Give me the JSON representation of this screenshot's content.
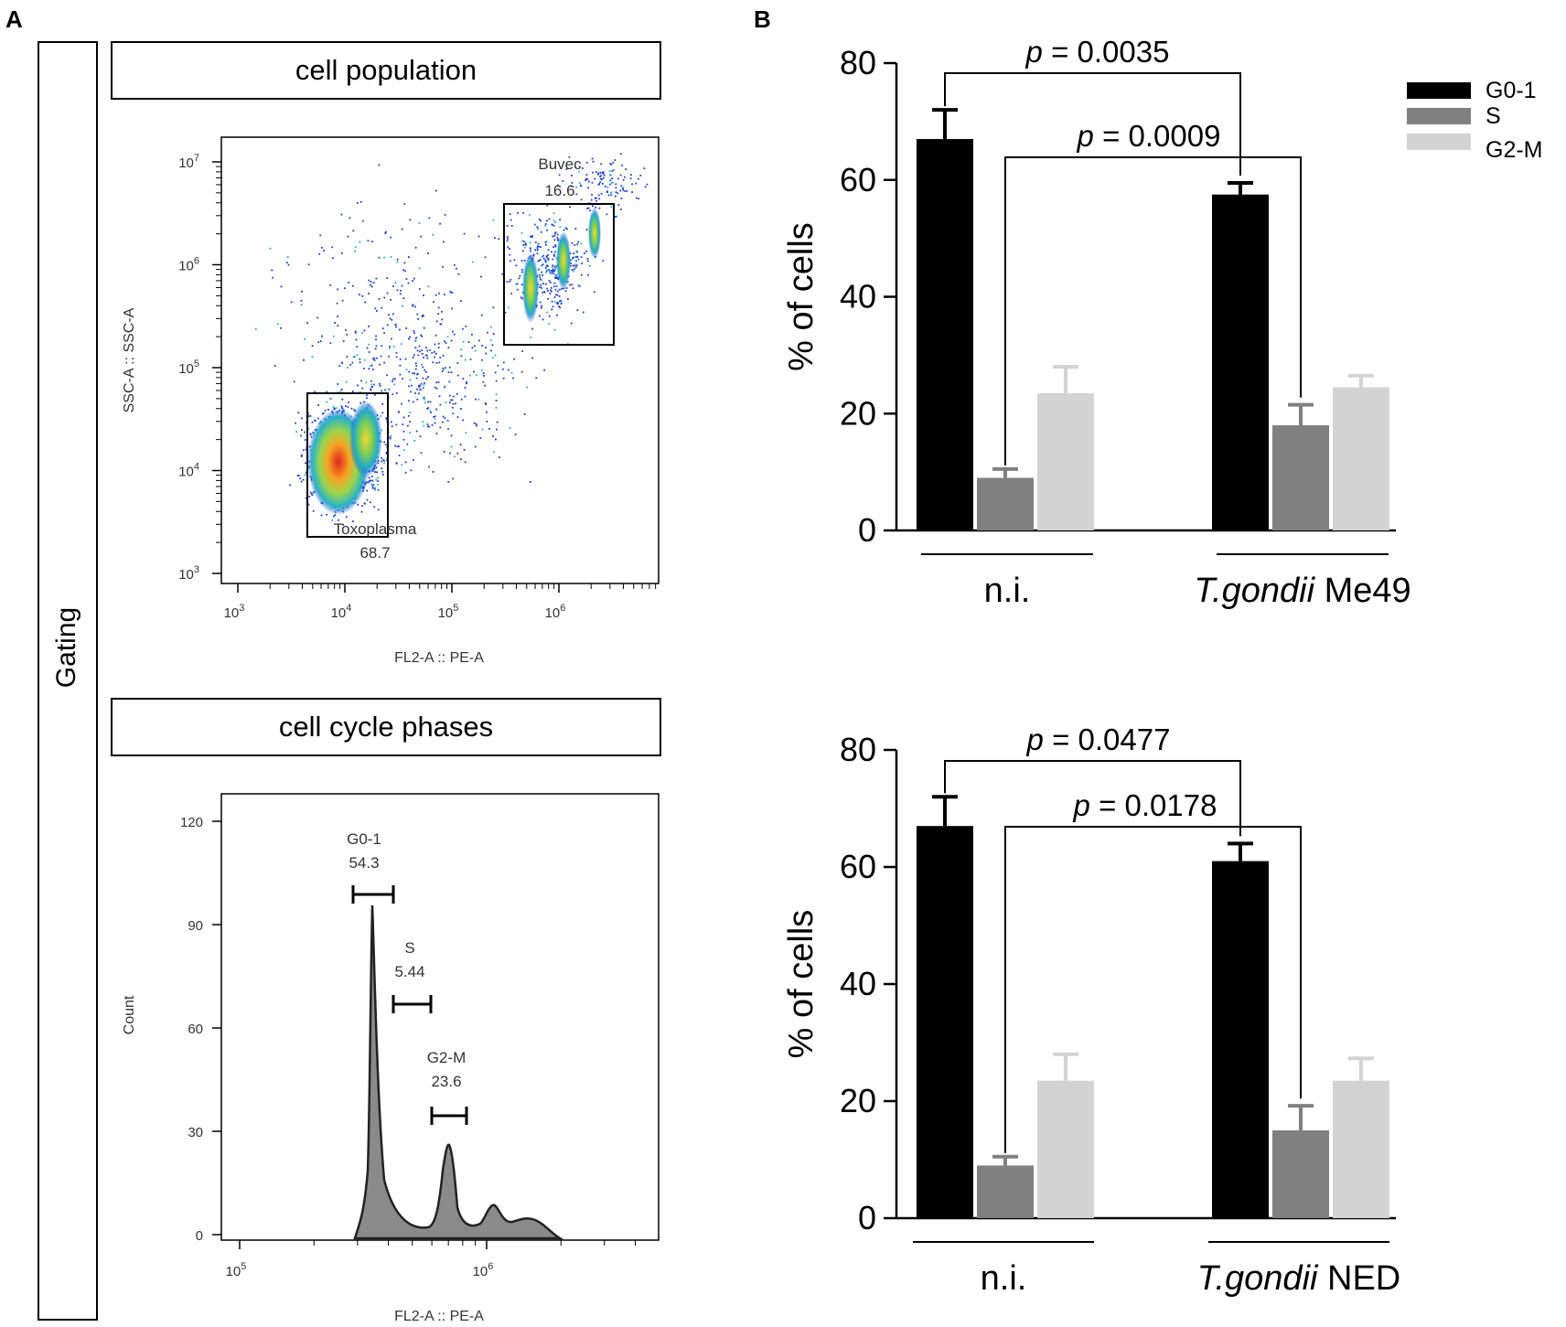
{
  "panel_a": {
    "letter": "A",
    "side_label": "Gating",
    "box1_title": "cell population",
    "box2_title": "cell cycle phases",
    "scatter": {
      "ylabel": "SSC-A :: SSC-A",
      "xlabel": "FL2-A :: PE-A",
      "x_ticks": [
        {
          "base": "10",
          "exp": "3"
        },
        {
          "base": "10",
          "exp": "4"
        },
        {
          "base": "10",
          "exp": "5"
        },
        {
          "base": "10",
          "exp": "6"
        }
      ],
      "y_ticks": [
        {
          "base": "10",
          "exp": "3"
        },
        {
          "base": "10",
          "exp": "4"
        },
        {
          "base": "10",
          "exp": "5"
        },
        {
          "base": "10",
          "exp": "6"
        },
        {
          "base": "10",
          "exp": "7"
        }
      ],
      "gates": [
        {
          "name": "Buvec",
          "value": "16.6"
        },
        {
          "name": "Toxoplasma",
          "value": "68.7"
        }
      ]
    },
    "histogram": {
      "ylabel": "Count",
      "xlabel": "FL2-A :: PE-A",
      "y_ticks": [
        "0",
        "30",
        "60",
        "90",
        "120"
      ],
      "x_ticks": [
        {
          "base": "10",
          "exp": "5"
        },
        {
          "base": "10",
          "exp": "6"
        }
      ],
      "gates": [
        {
          "name": "G0-1",
          "value": "54.3"
        },
        {
          "name": "S",
          "value": "5.44"
        },
        {
          "name": "G2-M",
          "value": "23.6"
        }
      ]
    }
  },
  "panel_b": {
    "letter": "B",
    "colors": {
      "G0-1": "#000000",
      "S": "#808080",
      "G2-M": "#d3d3d3"
    }
  },
  "chart_data": [
    {
      "type": "bar",
      "title": "",
      "categories": [
        "n.i.",
        "T.gondii Me49"
      ],
      "category_labels": [
        {
          "italic": "",
          "plain": "n.i."
        },
        {
          "italic": "T.gondii",
          "plain": " Me49"
        }
      ],
      "series": [
        {
          "name": "G0-1",
          "values": [
            67,
            57.5
          ],
          "errors": [
            5,
            2
          ]
        },
        {
          "name": "S",
          "values": [
            9,
            18
          ],
          "errors": [
            1.5,
            3.5
          ]
        },
        {
          "name": "G2-M",
          "values": [
            23.5,
            24.5
          ],
          "errors": [
            4.5,
            2
          ]
        }
      ],
      "ylabel": "% of cells",
      "ylim": [
        0,
        80
      ],
      "y_ticks": [
        "0",
        "20",
        "40",
        "60",
        "80"
      ],
      "legend": "top-right",
      "annotations": [
        {
          "text": "= 0.0035",
          "prefix": "p",
          "compare": "G0-1 n.i. vs G0-1 T.gondii Me49"
        },
        {
          "text": "= 0.0009",
          "prefix": "p",
          "compare": "S n.i. vs S T.gondii Me49"
        }
      ]
    },
    {
      "type": "bar",
      "title": "",
      "categories": [
        "n.i.",
        "T.gondii NED"
      ],
      "category_labels": [
        {
          "italic": "",
          "plain": "n.i."
        },
        {
          "italic": "T.gondii",
          "plain": " NED"
        }
      ],
      "series": [
        {
          "name": "G0-1",
          "values": [
            67,
            61
          ],
          "errors": [
            5,
            3
          ]
        },
        {
          "name": "S",
          "values": [
            9,
            15
          ],
          "errors": [
            1.5,
            4.2
          ]
        },
        {
          "name": "G2-M",
          "values": [
            23.5,
            23.5
          ],
          "errors": [
            4.5,
            3.8
          ]
        }
      ],
      "ylabel": "% of cells",
      "ylim": [
        0,
        80
      ],
      "y_ticks": [
        "0",
        "20",
        "40",
        "60",
        "80"
      ],
      "annotations": [
        {
          "text": "= 0.0477",
          "prefix": "p",
          "compare": "G0-1 n.i. vs G0-1 T.gondii NED"
        },
        {
          "text": "= 0.0178",
          "prefix": "p",
          "compare": "S n.i. vs S T.gondii NED"
        }
      ]
    }
  ]
}
